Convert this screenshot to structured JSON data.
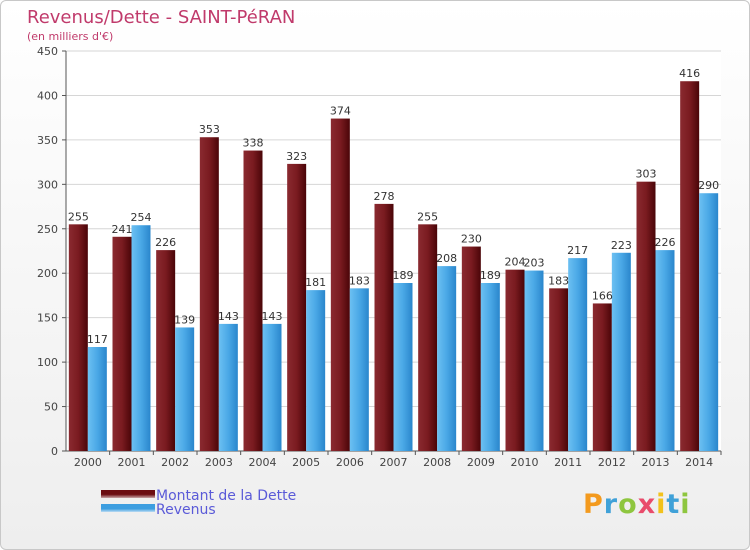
{
  "header": {
    "title": "Revenus/Dette - SAINT-PéRAN",
    "subtitle": "(en milliers d'€)"
  },
  "legend": {
    "items": [
      {
        "label": "Montant de la Dette",
        "color": "#6b0d12"
      },
      {
        "label": "Revenus",
        "color": "#3d9ee0"
      }
    ]
  },
  "logo": {
    "letters": [
      "P",
      "r",
      "o",
      "x",
      "i",
      "t",
      "i"
    ],
    "colors": [
      "#f39a1e",
      "#3fa1d8",
      "#8ec63f",
      "#e94b6b",
      "#f2c21c",
      "#3fa1d8",
      "#8ec63f"
    ]
  },
  "chart_data": {
    "type": "bar",
    "title": "Revenus/Dette - SAINT-PéRAN",
    "ylabel": "(en milliers d'€)",
    "xlabel": "",
    "categories": [
      "2000",
      "2001",
      "2002",
      "2003",
      "2004",
      "2005",
      "2006",
      "2007",
      "2008",
      "2009",
      "2010",
      "2011",
      "2012",
      "2013",
      "2014"
    ],
    "series": [
      {
        "name": "Montant de la Dette",
        "color": "#6b0d12",
        "values": [
          255,
          241,
          226,
          353,
          338,
          323,
          374,
          278,
          255,
          230,
          204,
          183,
          166,
          303,
          416
        ]
      },
      {
        "name": "Revenus",
        "color": "#3d9ee0",
        "values": [
          117,
          254,
          139,
          143,
          143,
          181,
          183,
          189,
          208,
          189,
          203,
          217,
          223,
          226,
          290
        ]
      }
    ],
    "ylim": [
      0,
      450
    ],
    "yticks": [
      0,
      50,
      100,
      150,
      200,
      250,
      300,
      350,
      400,
      450
    ],
    "grid": true,
    "legend_position": "bottom-left"
  }
}
